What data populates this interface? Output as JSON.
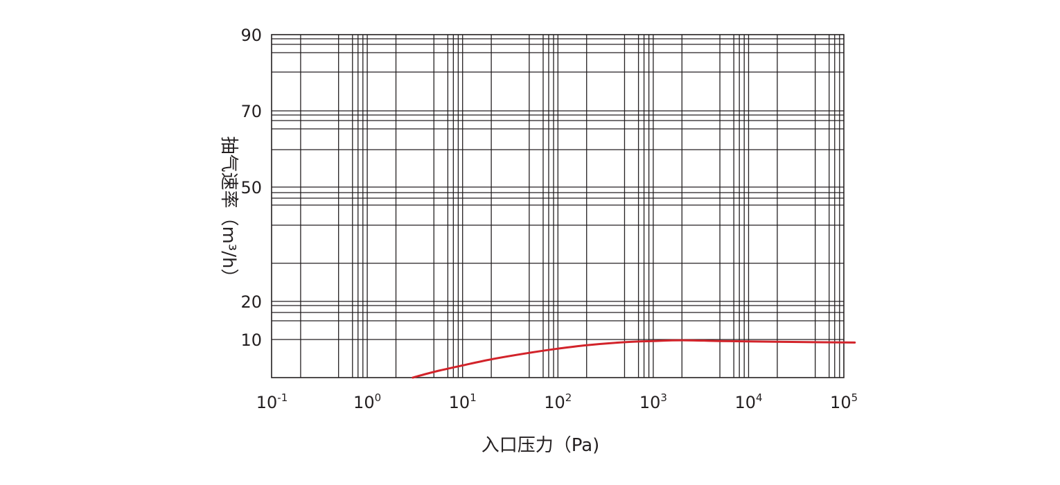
{
  "chart_data": {
    "type": "line",
    "xlabel": "入口压力（Pa)",
    "ylabel": "抽气速率（m³/h）",
    "x_scale": "log",
    "xlim": [
      0.1,
      130000
    ],
    "ylim": [
      0,
      90
    ],
    "x_ticks": [
      {
        "base": "10",
        "exp": "-1",
        "value": 0.1
      },
      {
        "base": "10",
        "exp": "0",
        "value": 1
      },
      {
        "base": "10",
        "exp": "1",
        "value": 10
      },
      {
        "base": "10",
        "exp": "2",
        "value": 100
      },
      {
        "base": "10",
        "exp": "3",
        "value": 1000
      },
      {
        "base": "10",
        "exp": "4",
        "value": 10000
      },
      {
        "base": "10",
        "exp": "5",
        "value": 100000
      }
    ],
    "y_ticks": [
      "10",
      "20",
      "50",
      "70",
      "90"
    ],
    "grid": true,
    "series": [
      {
        "color": "#d2232a",
        "x": [
          3,
          5,
          10,
          20,
          50,
          100,
          200,
          500,
          1000,
          2000,
          5000,
          10000,
          50000,
          130000
        ],
        "y": [
          0,
          1.5,
          3.2,
          4.8,
          6.5,
          7.6,
          8.5,
          9.3,
          9.6,
          9.8,
          9.6,
          9.5,
          9.3,
          9.2
        ]
      }
    ]
  }
}
